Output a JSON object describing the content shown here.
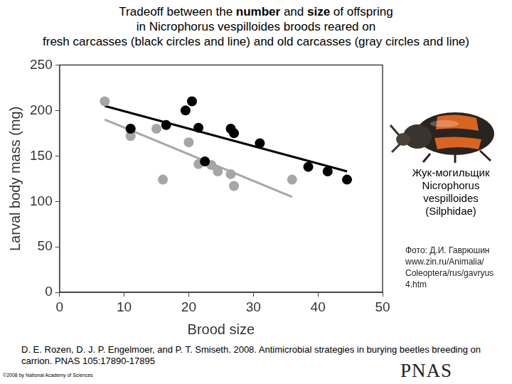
{
  "header": {
    "title_lines": [
      [
        {
          "text": "Tradeoff between the "
        },
        {
          "text": "number",
          "bold": true
        },
        {
          "text": " and "
        },
        {
          "text": "size",
          "bold": true
        },
        {
          "text": " of offspring"
        }
      ],
      [
        {
          "text": "in Nicrophorus vespilloides broods reared on"
        }
      ],
      [
        {
          "text": "fresh carcasses (black circles and line) and old carcasses (gray circles and line)"
        }
      ]
    ]
  },
  "chart_data": {
    "type": "scatter",
    "x_label": "Brood size",
    "y_label": "Larval body mass (mg)",
    "xlim": [
      0,
      50
    ],
    "xticks": [
      0,
      10,
      20,
      30,
      40,
      50
    ],
    "ylim": [
      0,
      250
    ],
    "yticks": [
      0,
      50,
      100,
      150,
      200,
      250
    ],
    "grid": false,
    "series": [
      {
        "type": "scatter",
        "color": "#000000",
        "marker": "circle",
        "values": [
          [
            11,
            180
          ],
          [
            16.5,
            184
          ],
          [
            19.5,
            200
          ],
          [
            20.5,
            210
          ],
          [
            21.5,
            181
          ],
          [
            22.5,
            144
          ],
          [
            26.5,
            180
          ],
          [
            27,
            175
          ],
          [
            31,
            164
          ],
          [
            38.5,
            138
          ],
          [
            41.5,
            133
          ],
          [
            44.5,
            124
          ]
        ]
      },
      {
        "type": "scatter",
        "color": "#a6a6a6",
        "marker": "circle",
        "values": [
          [
            7,
            210
          ],
          [
            11,
            180
          ],
          [
            11,
            172
          ],
          [
            15,
            180
          ],
          [
            16,
            124
          ],
          [
            20,
            165
          ],
          [
            21.5,
            141
          ],
          [
            23.5,
            140
          ],
          [
            24.5,
            133
          ],
          [
            26.5,
            130
          ],
          [
            27,
            117
          ],
          [
            36,
            124
          ]
        ]
      },
      {
        "type": "line",
        "color": "#000000",
        "marker": "none",
        "line_style": "solid",
        "values": [
          [
            7,
            205
          ],
          [
            44.5,
            133
          ]
        ]
      },
      {
        "type": "line",
        "color": "#a6a6a6",
        "marker": "none",
        "line_style": "solid",
        "values": [
          [
            7,
            190
          ],
          [
            36,
            105
          ]
        ]
      }
    ]
  },
  "side": {
    "caption_lines": [
      "Жук-могильщик",
      "Nicrophorus",
      "vespilloides",
      "(Silphidae)"
    ],
    "credit_lines": [
      "Фото: Д.И. Гаврюшин",
      "www.zin.ru/Animalia/",
      "Coleoptera/rus/gavryus",
      "4.htm"
    ]
  },
  "footer": {
    "citation": "D. E. Rozen, D. J. P. Engelmoer, and P. T. Smiseth. 2008. Antimicrobial strategies in burying beetles breeding on carrion. PNAS 105:17890-17895",
    "copyright": "©2008 by National Academy of Sciences",
    "logo": "PNAS"
  }
}
